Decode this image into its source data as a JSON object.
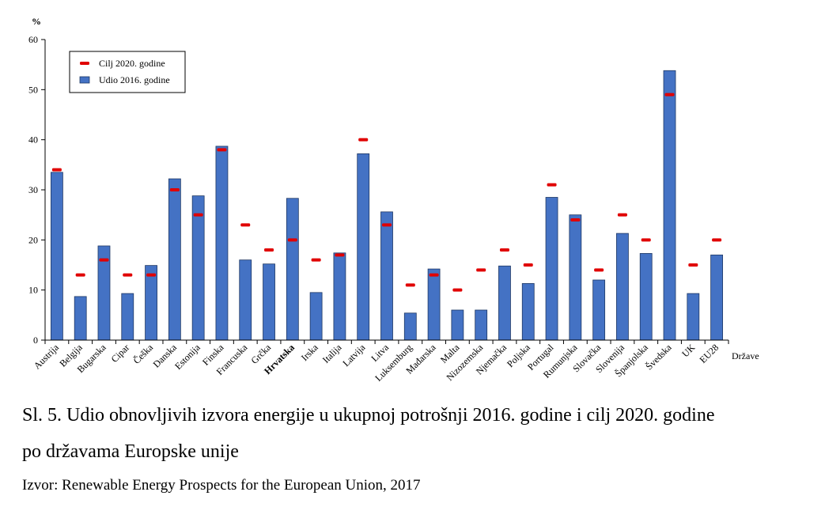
{
  "chart_data": {
    "type": "bar",
    "ylabel": "%",
    "xlabel": "Države",
    "ylim": [
      0,
      60
    ],
    "yticks": [
      0,
      10,
      20,
      30,
      40,
      50,
      60
    ],
    "categories": [
      "Austrija",
      "Belgija",
      "Bugarska",
      "Cipar",
      "Češka",
      "Danska",
      "Estonija",
      "Finska",
      "Francuska",
      "Grčka",
      "Hrvatska",
      "Irska",
      "Italija",
      "Latvija",
      "Litva",
      "Luksemburg",
      "Mađarska",
      "Malta",
      "Nizozemska",
      "Njemačka",
      "Poljska",
      "Portugal",
      "Rumunjska",
      "Slovačka",
      "Slovenija",
      "Španjolska",
      "Švedska",
      "UK",
      "EU28"
    ],
    "highlighted_category": "Hrvatska",
    "series": [
      {
        "name": "Udio 2016. godine",
        "kind": "bar",
        "color": "#4472c4",
        "values": [
          33.5,
          8.7,
          18.8,
          9.3,
          14.9,
          32.2,
          28.8,
          38.7,
          16.0,
          15.2,
          28.3,
          9.5,
          17.4,
          37.2,
          25.6,
          5.4,
          14.2,
          6.0,
          6.0,
          14.8,
          11.3,
          28.5,
          25.0,
          12.0,
          21.3,
          17.3,
          53.8,
          9.3,
          17.0
        ]
      },
      {
        "name": "Cilj 2020. godine",
        "kind": "marker",
        "color": "#e00000",
        "values": [
          34,
          13,
          16,
          13,
          13,
          30,
          25,
          38,
          23,
          18,
          20,
          16,
          17,
          40,
          23,
          11,
          13,
          10,
          14,
          18,
          15,
          31,
          24,
          14,
          25,
          20,
          49,
          15,
          20
        ]
      }
    ],
    "legend": {
      "position": "top-left",
      "entries": [
        "Cilj 2020. godine",
        "Udio 2016. godine"
      ]
    },
    "grid": false
  },
  "caption": {
    "line1": "Sl. 5. Udio obnovljivih izvora energije u ukupnoj potrošnji 2016. godine i cilj 2020. godine",
    "line2": "po državama Europske unije",
    "source": "Izvor: Renewable Energy Prospects for the European Union, 2017"
  }
}
